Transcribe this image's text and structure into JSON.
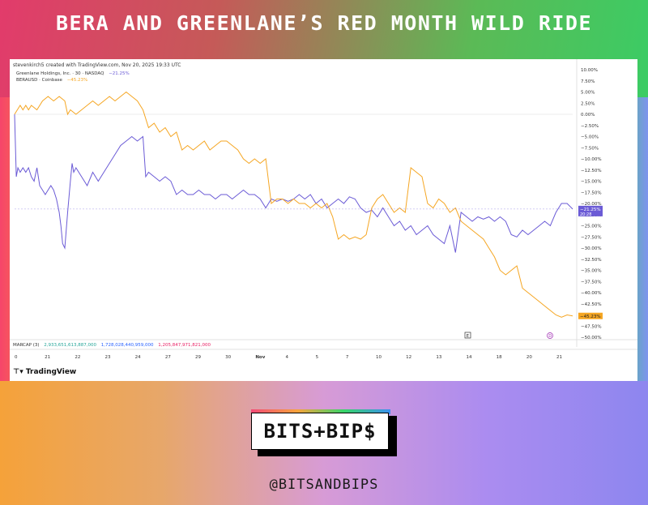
{
  "headline": "BERA AND GREENLANE’S RED MONTH WILD RIDE",
  "credit": "stevenkirch5 created with TradingView.com, Nov 20, 2025 19:33 UTC",
  "legend": [
    {
      "name": "Greenlane Holdings, Inc. · 30 · NASDAQ",
      "value": "−21.25%",
      "color": "#6b5bd6"
    },
    {
      "name": "BERAUSD · Coinbase",
      "value": "−45.23%",
      "color": "#f5a623"
    }
  ],
  "marcap": {
    "label": "MARCAP (3)",
    "v1": "2,933,651,613,887,000",
    "v2": "1,728,028,440,959,000",
    "v3": "1,205,847,971,821,000",
    "c1": "#26a69a",
    "c2": "#2962ff",
    "c3": "#e91e63"
  },
  "tradingview": "TradingView",
  "brand": {
    "logo": "BITS+BIP$",
    "handle": "@BITSANDBIPS"
  },
  "colors": {
    "purple": "#6b5bd6",
    "orange": "#f5a623"
  },
  "chart_data": {
    "type": "line",
    "x_labels": [
      "0",
      "21",
      "22",
      "23",
      "24",
      "27",
      "29",
      "30",
      "Nov",
      "4",
      "5",
      "7",
      "10",
      "12",
      "13",
      "14",
      "18",
      "20",
      "21"
    ],
    "y_ticks": [
      "10.00%",
      "7.50%",
      "5.00%",
      "2.50%",
      "0.00%",
      "−2.50%",
      "−5.00%",
      "−7.50%",
      "−10.00%",
      "−12.50%",
      "−15.00%",
      "−17.50%",
      "−20.00%",
      "−22.50%",
      "−25.00%",
      "−27.50%",
      "−30.00%",
      "−32.50%",
      "−35.00%",
      "−37.50%",
      "−40.00%",
      "−42.50%",
      "−45.00%",
      "−47.50%",
      "−50.00%"
    ],
    "ylim": [
      -50,
      10
    ],
    "last_labels": [
      {
        "value": "−21.25%",
        "sub": "20:28",
        "color": "#6b5bd6"
      },
      {
        "value": "−45.23%",
        "color": "#f5a623"
      }
    ],
    "event_markers": [
      "E",
      "D"
    ],
    "series": [
      {
        "name": "Greenlane Holdings, Inc.",
        "color": "#6b5bd6",
        "points": [
          [
            0,
            0
          ],
          [
            0.3,
            -14
          ],
          [
            0.6,
            -12
          ],
          [
            1,
            -13
          ],
          [
            1.5,
            -12
          ],
          [
            2,
            -13
          ],
          [
            2.5,
            -12
          ],
          [
            3,
            -14
          ],
          [
            3.5,
            -15
          ],
          [
            4,
            -12
          ],
          [
            4.5,
            -16
          ],
          [
            5,
            -17
          ],
          [
            5.5,
            -18
          ],
          [
            6,
            -17
          ],
          [
            6.5,
            -16
          ],
          [
            7,
            -17
          ],
          [
            7.5,
            -19
          ],
          [
            8,
            -22
          ],
          [
            8.3,
            -25
          ],
          [
            8.6,
            -29
          ],
          [
            9,
            -30
          ],
          [
            9.5,
            -22
          ],
          [
            10,
            -15
          ],
          [
            10.3,
            -11
          ],
          [
            10.6,
            -13
          ],
          [
            11,
            -12
          ],
          [
            12,
            -14
          ],
          [
            13,
            -16
          ],
          [
            14,
            -13
          ],
          [
            14.5,
            -14
          ],
          [
            15,
            -15
          ],
          [
            16,
            -13
          ],
          [
            17,
            -11
          ],
          [
            18,
            -9
          ],
          [
            19,
            -7
          ],
          [
            20,
            -6
          ],
          [
            21,
            -5
          ],
          [
            22,
            -6
          ],
          [
            23,
            -5
          ],
          [
            23.5,
            -14
          ],
          [
            24,
            -13
          ],
          [
            25,
            -14
          ],
          [
            26,
            -15
          ],
          [
            27,
            -14
          ],
          [
            28,
            -15
          ],
          [
            29,
            -18
          ],
          [
            30,
            -17
          ],
          [
            31,
            -18
          ],
          [
            32,
            -18
          ],
          [
            33,
            -17
          ],
          [
            34,
            -18
          ],
          [
            35,
            -18
          ],
          [
            36,
            -19
          ],
          [
            37,
            -18
          ],
          [
            38,
            -18
          ],
          [
            39,
            -19
          ],
          [
            40,
            -18
          ],
          [
            41,
            -17
          ],
          [
            42,
            -18
          ],
          [
            43,
            -18
          ],
          [
            44,
            -19
          ],
          [
            45,
            -21
          ],
          [
            46,
            -19
          ],
          [
            47,
            -19.5
          ],
          [
            48,
            -19
          ],
          [
            49,
            -19.5
          ],
          [
            50,
            -19
          ],
          [
            51,
            -18
          ],
          [
            52,
            -19
          ],
          [
            53,
            -18
          ],
          [
            54,
            -20
          ],
          [
            55,
            -19
          ],
          [
            56,
            -21
          ],
          [
            57,
            -20
          ],
          [
            58,
            -19
          ],
          [
            59,
            -20
          ],
          [
            60,
            -18.5
          ],
          [
            61,
            -19
          ],
          [
            62,
            -21
          ],
          [
            63,
            -22
          ],
          [
            64,
            -21.5
          ],
          [
            65,
            -23
          ],
          [
            66,
            -21
          ],
          [
            67,
            -23
          ],
          [
            68,
            -25
          ],
          [
            69,
            -24
          ],
          [
            70,
            -26
          ],
          [
            71,
            -25
          ],
          [
            72,
            -27
          ],
          [
            73,
            -26
          ],
          [
            74,
            -25
          ],
          [
            75,
            -27
          ],
          [
            76,
            -28
          ],
          [
            77,
            -29
          ],
          [
            78,
            -25
          ],
          [
            79,
            -31
          ],
          [
            80,
            -22
          ],
          [
            81,
            -23
          ],
          [
            82,
            -24
          ],
          [
            83,
            -23
          ],
          [
            84,
            -23.5
          ],
          [
            85,
            -23
          ],
          [
            86,
            -24
          ],
          [
            87,
            -23
          ],
          [
            88,
            -24
          ],
          [
            89,
            -27
          ],
          [
            90,
            -27.5
          ],
          [
            91,
            -26
          ],
          [
            92,
            -27
          ],
          [
            93,
            -26
          ],
          [
            94,
            -25
          ],
          [
            95,
            -24
          ],
          [
            96,
            -25
          ],
          [
            97,
            -22
          ],
          [
            98,
            -20
          ],
          [
            99,
            -20
          ],
          [
            100,
            -21.25
          ]
        ]
      },
      {
        "name": "BERAUSD",
        "color": "#f5a623",
        "points": [
          [
            0,
            0
          ],
          [
            0.5,
            1
          ],
          [
            1,
            2
          ],
          [
            1.5,
            1
          ],
          [
            2,
            2
          ],
          [
            2.5,
            1
          ],
          [
            3,
            2
          ],
          [
            4,
            1
          ],
          [
            5,
            3
          ],
          [
            6,
            4
          ],
          [
            7,
            3
          ],
          [
            8,
            4
          ],
          [
            9,
            3
          ],
          [
            9.5,
            0
          ],
          [
            10,
            1
          ],
          [
            11,
            0
          ],
          [
            12,
            1
          ],
          [
            13,
            2
          ],
          [
            14,
            3
          ],
          [
            15,
            2
          ],
          [
            16,
            3
          ],
          [
            17,
            4
          ],
          [
            18,
            3
          ],
          [
            19,
            4
          ],
          [
            20,
            5
          ],
          [
            21,
            4
          ],
          [
            22,
            3
          ],
          [
            23,
            1
          ],
          [
            24,
            -3
          ],
          [
            25,
            -2
          ],
          [
            26,
            -4
          ],
          [
            27,
            -3
          ],
          [
            28,
            -5
          ],
          [
            29,
            -4
          ],
          [
            30,
            -8
          ],
          [
            31,
            -7
          ],
          [
            32,
            -8
          ],
          [
            33,
            -7
          ],
          [
            34,
            -6
          ],
          [
            35,
            -8
          ],
          [
            36,
            -7
          ],
          [
            37,
            -6
          ],
          [
            38,
            -6
          ],
          [
            39,
            -7
          ],
          [
            40,
            -8
          ],
          [
            41,
            -10
          ],
          [
            42,
            -11
          ],
          [
            43,
            -10
          ],
          [
            44,
            -11
          ],
          [
            45,
            -10
          ],
          [
            46,
            -20
          ],
          [
            47,
            -19
          ],
          [
            48,
            -19
          ],
          [
            49,
            -20
          ],
          [
            50,
            -19
          ],
          [
            51,
            -20
          ],
          [
            52,
            -20
          ],
          [
            53,
            -21
          ],
          [
            54,
            -20
          ],
          [
            55,
            -21
          ],
          [
            56,
            -20
          ],
          [
            57,
            -23
          ],
          [
            58,
            -28
          ],
          [
            59,
            -27
          ],
          [
            60,
            -28
          ],
          [
            61,
            -27.5
          ],
          [
            62,
            -28
          ],
          [
            63,
            -27
          ],
          [
            64,
            -21
          ],
          [
            65,
            -19
          ],
          [
            66,
            -18
          ],
          [
            67,
            -20
          ],
          [
            68,
            -22
          ],
          [
            69,
            -21
          ],
          [
            70,
            -22
          ],
          [
            71,
            -12
          ],
          [
            72,
            -13
          ],
          [
            73,
            -14
          ],
          [
            74,
            -20
          ],
          [
            75,
            -21
          ],
          [
            76,
            -19
          ],
          [
            77,
            -20
          ],
          [
            78,
            -22
          ],
          [
            79,
            -21
          ],
          [
            80,
            -24
          ],
          [
            81,
            -25
          ],
          [
            82,
            -26
          ],
          [
            83,
            -27
          ],
          [
            84,
            -28
          ],
          [
            85,
            -30
          ],
          [
            86,
            -32
          ],
          [
            87,
            -35
          ],
          [
            88,
            -36
          ],
          [
            89,
            -35
          ],
          [
            90,
            -34
          ],
          [
            91,
            -39
          ],
          [
            92,
            -40
          ],
          [
            93,
            -41
          ],
          [
            94,
            -42
          ],
          [
            95,
            -43
          ],
          [
            96,
            -44
          ],
          [
            97,
            -45
          ],
          [
            98,
            -45.5
          ],
          [
            99,
            -45
          ],
          [
            100,
            -45.23
          ]
        ]
      }
    ]
  }
}
